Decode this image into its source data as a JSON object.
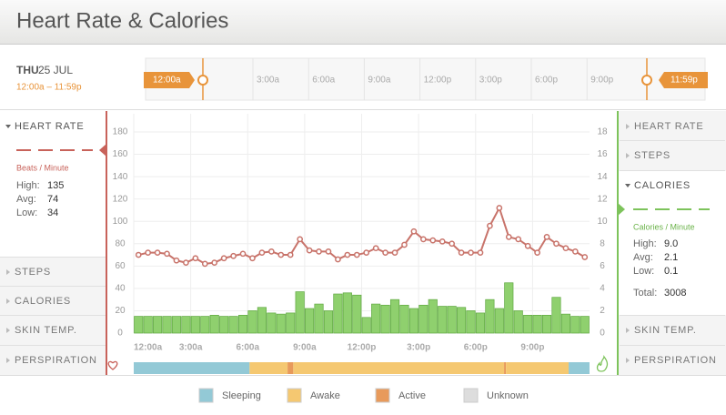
{
  "header": {
    "title": "Heart Rate & Calories"
  },
  "date": {
    "day": "THU",
    "date": "25 JUL",
    "range": "12:00a – 11:59p"
  },
  "slider": {
    "start": "12:00a",
    "end": "11:59p",
    "labels": [
      "3:00a",
      "6:00a",
      "9:00a",
      "12:00p",
      "3:00p",
      "6:00p",
      "9:00p"
    ]
  },
  "left_panel": {
    "sections": [
      "HEART RATE",
      "STEPS",
      "CALORIES",
      "SKIN TEMP.",
      "PERSPIRATION"
    ],
    "unit": "Beats / Minute",
    "stats": [
      [
        "High:",
        "135"
      ],
      [
        "Avg:",
        "74"
      ],
      [
        "Low:",
        "34"
      ]
    ]
  },
  "right_panel": {
    "sections": [
      "HEART RATE",
      "STEPS",
      "CALORIES",
      "SKIN TEMP.",
      "PERSPIRATION"
    ],
    "unit": "Calories / Minute",
    "stats": [
      [
        "High:",
        "9.0"
      ],
      [
        "Avg:",
        "2.1"
      ],
      [
        "Low:",
        "0.1"
      ]
    ],
    "total": [
      "Total:",
      "3008"
    ]
  },
  "chart_data": {
    "type": "bar",
    "grid": true,
    "xlim": [
      0,
      24
    ],
    "xticks": [
      {
        "value": 0,
        "label": "12:00a"
      },
      {
        "value": 3,
        "label": "3:00a"
      },
      {
        "value": 6,
        "label": "6:00a"
      },
      {
        "value": 9,
        "label": "9:00a"
      },
      {
        "value": 12,
        "label": "12:00p"
      },
      {
        "value": 15,
        "label": "3:00p"
      },
      {
        "value": 18,
        "label": "6:00p"
      },
      {
        "value": 21,
        "label": "9:00p"
      }
    ],
    "ylim": [
      0,
      180
    ],
    "yticks": [
      0,
      20,
      40,
      60,
      80,
      100,
      120,
      140,
      160,
      180
    ],
    "y2lim": [
      0,
      18
    ],
    "y2ticks": [
      0,
      2,
      4,
      6,
      8,
      10,
      12,
      14,
      16,
      18
    ],
    "x": [
      0,
      0.5,
      1,
      1.5,
      2,
      2.5,
      3,
      3.5,
      4,
      4.5,
      5,
      5.5,
      6,
      6.5,
      7,
      7.5,
      8,
      8.5,
      9,
      9.5,
      10,
      10.5,
      11,
      11.5,
      12,
      12.5,
      13,
      13.5,
      14,
      14.5,
      15,
      15.5,
      16,
      16.5,
      17,
      17.5,
      18,
      18.5,
      19,
      19.5,
      20,
      20.5,
      21,
      21.5,
      22,
      22.5,
      23,
      23.5
    ],
    "series": [
      {
        "type": "line",
        "color": "#c8736a",
        "values": [
          70,
          72,
          72,
          71,
          65,
          63,
          67,
          62,
          63,
          67,
          69,
          71,
          67,
          72,
          73,
          70,
          70,
          84,
          74,
          73,
          73,
          66,
          70,
          70,
          72,
          76,
          72,
          72,
          79,
          91,
          84,
          83,
          82,
          80,
          72,
          72,
          72,
          96,
          112,
          86,
          84,
          78,
          72,
          86,
          80,
          76,
          73,
          68
        ]
      },
      {
        "type": "bar",
        "axis": "y2",
        "color": "#8fd06e",
        "values": [
          1.5,
          1.5,
          1.5,
          1.5,
          1.5,
          1.5,
          1.5,
          1.5,
          1.6,
          1.5,
          1.5,
          1.6,
          2.0,
          2.3,
          1.8,
          1.7,
          1.8,
          3.7,
          2.2,
          2.6,
          2.0,
          3.5,
          3.6,
          3.4,
          1.4,
          2.6,
          2.5,
          3.0,
          2.5,
          2.2,
          2.5,
          3.0,
          2.4,
          2.4,
          2.3,
          2.0,
          1.8,
          3.0,
          2.2,
          4.5,
          2.0,
          1.6,
          1.6,
          1.6,
          3.2,
          1.7,
          1.5,
          1.5
        ]
      }
    ],
    "strip": [
      {
        "color": "#93c9d6",
        "start": 0,
        "end": 6.1
      },
      {
        "color": "#f5c871",
        "start": 6.1,
        "end": 8.1
      },
      {
        "color": "#e89a5b",
        "start": 8.1,
        "end": 8.4
      },
      {
        "color": "#f5c871",
        "start": 8.4,
        "end": 19.5
      },
      {
        "color": "#e89a5b",
        "start": 19.5,
        "end": 19.6
      },
      {
        "color": "#f5c871",
        "start": 19.6,
        "end": 22.9
      },
      {
        "color": "#93c9d6",
        "start": 22.9,
        "end": 24
      }
    ]
  },
  "legend": [
    {
      "label": "Sleeping",
      "color": "#93c9d6"
    },
    {
      "label": "Awake",
      "color": "#f5c871"
    },
    {
      "label": "Active",
      "color": "#e89a5b"
    },
    {
      "label": "Unknown",
      "color": "#dddddd"
    }
  ]
}
